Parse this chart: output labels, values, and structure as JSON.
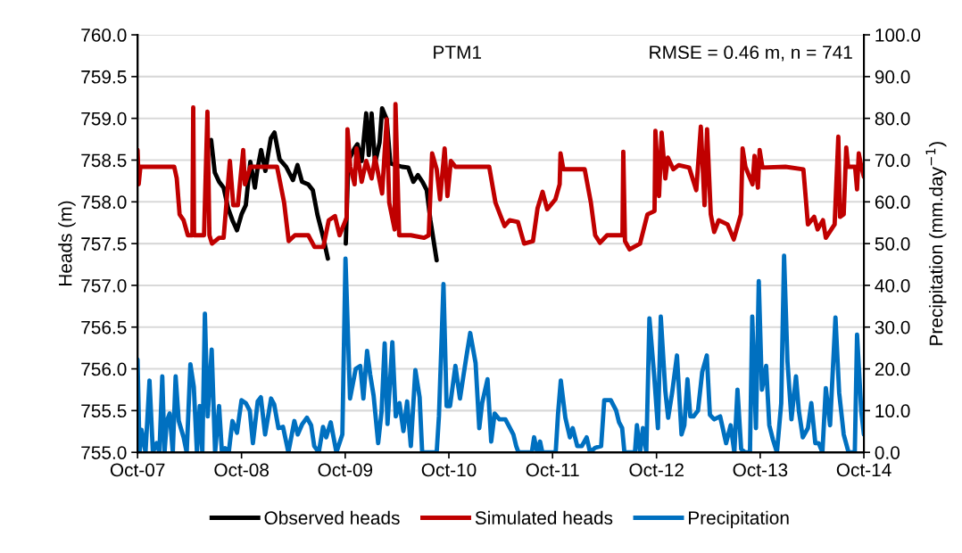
{
  "chart_data": {
    "type": "line",
    "ylabel": "Heads (m)",
    "y2label": "Precipitation (mm.day$^{−1}$)",
    "annotations": [
      "PTM1",
      "RMSE = 0.46 m, n = 741"
    ],
    "xlim": [
      "2007-10-01",
      "2014-10-01"
    ],
    "xticks": [
      {
        "value": "2007-10-01",
        "label": "Oct-07"
      },
      {
        "value": "2008-10-01",
        "label": "Oct-08"
      },
      {
        "value": "2009-10-01",
        "label": "Oct-09"
      },
      {
        "value": "2010-10-01",
        "label": "Oct-10"
      },
      {
        "value": "2011-10-01",
        "label": "Oct-11"
      },
      {
        "value": "2012-10-01",
        "label": "Oct-12"
      },
      {
        "value": "2013-10-01",
        "label": "Oct-13"
      },
      {
        "value": "2014-10-01",
        "label": "Oct-14"
      }
    ],
    "ylim": [
      755,
      760
    ],
    "yticks": [
      {
        "value": 755,
        "label": "755.0"
      },
      {
        "value": 755.5,
        "label": "755.5"
      },
      {
        "value": 756,
        "label": "756.0"
      },
      {
        "value": 756.5,
        "label": "756.5"
      },
      {
        "value": 757,
        "label": "757.0"
      },
      {
        "value": 757.5,
        "label": "757.5"
      },
      {
        "value": 758,
        "label": "758.0"
      },
      {
        "value": 758.5,
        "label": "758.5"
      },
      {
        "value": 759,
        "label": "759.0"
      },
      {
        "value": 759.5,
        "label": "759.5"
      },
      {
        "value": 760,
        "label": "760.0"
      }
    ],
    "y2lim": [
      0,
      100
    ],
    "y2ticks": [
      {
        "value": 0,
        "label": "0.0"
      },
      {
        "value": 10,
        "label": "10.0"
      },
      {
        "value": 20,
        "label": "20.0"
      },
      {
        "value": 30,
        "label": "30.0"
      },
      {
        "value": 40,
        "label": "40.0"
      },
      {
        "value": 50,
        "label": "50.0"
      },
      {
        "value": 60,
        "label": "60.0"
      },
      {
        "value": 70,
        "label": "70.0"
      },
      {
        "value": 80,
        "label": "80.0"
      },
      {
        "value": 90,
        "label": "90.0"
      },
      {
        "value": 100,
        "label": "100.0"
      }
    ],
    "grid": "y",
    "legend": "bottom",
    "marker": "none",
    "line_style": "solid",
    "series": [
      {
        "name": "Observed heads",
        "color": "#000000",
        "x": [
          "2008-06-16",
          "2008-06-29",
          "2008-07-14",
          "2008-07-30",
          "2008-08-15",
          "2008-08-30",
          "2008-09-15",
          "2008-10-01",
          "2008-10-16",
          "2008-11-01",
          "2008-11-17",
          "2008-11-26",
          "2008-12-09",
          "2008-12-24",
          "2009-01-12",
          "2009-01-25",
          "2009-02-12",
          "2009-03-07",
          "2009-03-31",
          "2009-04-16",
          "2009-05-02",
          "2009-05-24",
          "2009-06-09",
          "2009-06-25",
          "2009-07-16",
          "2009-08-01",
          "2009-09-02",
          "2009-10-03",
          "2009-10-12",
          "2009-11-03",
          "2009-11-13",
          "2009-11-28",
          "2009-12-14",
          "2009-12-23",
          "2010-01-02",
          "2010-01-14",
          "2010-01-30",
          "2010-02-08",
          "2010-02-24",
          "2010-03-09",
          "2010-04-19",
          "2010-05-11",
          "2010-05-29",
          "2010-06-14",
          "2010-06-30",
          "2010-07-15",
          "2010-07-28",
          "2010-08-19"
        ],
        "values": [
          758.74,
          758.35,
          758.24,
          758.17,
          757.92,
          757.78,
          757.66,
          757.85,
          757.96,
          758.48,
          758.17,
          758.39,
          758.62,
          758.37,
          758.76,
          758.83,
          758.51,
          758.42,
          758.26,
          758.44,
          758.24,
          758.21,
          758.14,
          757.85,
          757.57,
          757.32,
          null,
          757.5,
          758.49,
          758.64,
          758.69,
          758.49,
          759.06,
          758.56,
          759.06,
          758.46,
          758.71,
          759.12,
          758.99,
          758.46,
          758.42,
          758.41,
          758.24,
          758.32,
          758.24,
          758.14,
          757.78,
          757.3
        ]
      },
      {
        "name": "Simulated heads",
        "color": "#c00000",
        "x": [
          "2007-10-01",
          "2007-10-05",
          "2007-10-11",
          "2008-02-07",
          "2008-02-16",
          "2008-02-26",
          "2008-03-11",
          "2008-03-26",
          "2008-04-11",
          "2008-04-14",
          "2008-04-17",
          "2008-05-22",
          "2008-06-03",
          "2008-06-10",
          "2008-06-19",
          "2008-07-14",
          "2008-07-30",
          "2008-08-21",
          "2008-09-02",
          "2008-09-18",
          "2008-10-07",
          "2008-10-13",
          "2008-11-01",
          "2009-02-03",
          "2009-02-28",
          "2009-03-16",
          "2009-04-07",
          "2009-05-24",
          "2009-06-15",
          "2009-07-16",
          "2009-08-04",
          "2009-08-26",
          "2009-09-11",
          "2009-10-06",
          "2009-10-09",
          "2009-10-19",
          "2009-11-03",
          "2009-11-10",
          "2009-11-28",
          "2009-12-14",
          "2010-01-02",
          "2010-01-14",
          "2010-02-08",
          "2010-02-24",
          "2010-03-05",
          "2010-03-24",
          "2010-03-27",
          "2010-04-09",
          "2010-05-20",
          "2010-07-06",
          "2010-07-22",
          "2010-08-03",
          "2010-08-19",
          "2010-08-31",
          "2010-09-16",
          "2010-09-26",
          "2010-10-08",
          "2010-10-24",
          "2011-02-20",
          "2011-03-14",
          "2011-03-30",
          "2011-04-15",
          "2011-05-03",
          "2011-06-01",
          "2011-06-23",
          "2011-07-24",
          "2011-08-09",
          "2011-08-27",
          "2011-09-12",
          "2011-10-11",
          "2011-10-26",
          "2011-10-29",
          "2011-11-08",
          "2012-01-22",
          "2012-02-13",
          "2012-02-28",
          "2012-03-16",
          "2012-04-10",
          "2012-05-18",
          "2012-06-03",
          "2012-06-06",
          "2012-06-12",
          "2012-06-28",
          "2012-08-04",
          "2012-08-30",
          "2012-09-24",
          "2012-09-27",
          "2012-10-10",
          "2012-10-19",
          "2012-11-01",
          "2012-11-10",
          "2012-11-29",
          "2012-12-18",
          "2013-01-24",
          "2013-02-18",
          "2013-03-06",
          "2013-03-19",
          "2013-03-28",
          "2013-04-10",
          "2013-04-22",
          "2013-05-08",
          "2013-06-08",
          "2013-06-30",
          "2013-07-25",
          "2013-07-31",
          "2013-08-10",
          "2013-09-04",
          "2013-09-11",
          "2013-09-23",
          "2013-09-29",
          "2013-10-09",
          "2013-12-29",
          "2014-03-02",
          "2014-03-18",
          "2014-04-09",
          "2014-04-21",
          "2014-05-10",
          "2014-05-20",
          "2014-06-20",
          "2014-07-03",
          "2014-07-09",
          "2014-07-22",
          "2014-07-31",
          "2014-08-06",
          "2014-08-31",
          "2014-09-07",
          "2014-09-13",
          "2014-09-22",
          "2014-10-01"
        ],
        "values": [
          758.62,
          758.21,
          758.42,
          758.42,
          758.28,
          757.85,
          757.78,
          757.6,
          757.6,
          759.13,
          757.6,
          757.6,
          759.08,
          757.6,
          757.5,
          757.57,
          757.57,
          758.49,
          757.96,
          757.96,
          758.62,
          758.21,
          758.42,
          758.42,
          757.99,
          757.53,
          757.6,
          757.6,
          757.46,
          757.46,
          757.78,
          757.83,
          757.6,
          757.81,
          758.87,
          758.42,
          758.21,
          758.64,
          758.24,
          758.49,
          758.28,
          758.53,
          758.1,
          758.99,
          757.99,
          757.67,
          759.17,
          757.6,
          757.6,
          757.57,
          757.6,
          758.58,
          758.39,
          758.03,
          758.64,
          758.07,
          758.49,
          758.42,
          758.42,
          757.99,
          757.85,
          757.71,
          757.78,
          757.76,
          757.5,
          757.53,
          757.92,
          758.12,
          757.91,
          758.03,
          758.21,
          758.58,
          758.39,
          758.39,
          757.99,
          757.6,
          757.51,
          757.6,
          757.6,
          757.6,
          758.6,
          757.53,
          757.43,
          757.5,
          757.85,
          757.89,
          758.85,
          758.07,
          758.83,
          758.28,
          758.53,
          758.39,
          758.44,
          758.41,
          758.14,
          758.9,
          757.96,
          758.87,
          757.85,
          757.64,
          757.78,
          757.73,
          757.55,
          757.85,
          758.64,
          758.42,
          758.21,
          758.55,
          758.17,
          758.62,
          758.41,
          758.42,
          758.39,
          757.73,
          757.82,
          757.67,
          757.78,
          757.57,
          757.73,
          758.78,
          757.82,
          757.85,
          758.65,
          758.42,
          758.42,
          758.15,
          758.58,
          758.42,
          758.3
        ]
      },
      {
        "name": "Precipitation",
        "color": "#0070c0",
        "axis": "y2",
        "x": [
          "2007-10-01",
          "2007-10-08",
          "2007-10-15",
          "2007-10-29",
          "2007-11-12",
          "2007-11-24",
          "2007-12-07",
          "2007-12-17",
          "2007-12-27",
          "2008-01-04",
          "2008-01-12",
          "2008-01-22",
          "2008-02-02",
          "2008-02-12",
          "2008-02-23",
          "2008-03-11",
          "2008-03-22",
          "2008-04-04",
          "2008-04-16",
          "2008-04-27",
          "2008-05-07",
          "2008-05-16",
          "2008-05-25",
          "2008-06-04",
          "2008-06-18",
          "2008-06-30",
          "2008-07-14",
          "2008-07-24",
          "2008-08-04",
          "2008-08-17",
          "2008-08-30",
          "2008-09-15",
          "2008-10-01",
          "2008-10-16",
          "2008-10-30",
          "2008-11-10",
          "2008-11-27",
          "2008-12-08",
          "2008-12-23",
          "2009-01-13",
          "2009-01-24",
          "2009-02-08",
          "2009-02-24",
          "2009-03-15",
          "2009-04-05",
          "2009-04-17",
          "2009-05-03",
          "2009-05-19",
          "2009-06-03",
          "2009-06-14",
          "2009-06-30",
          "2009-07-15",
          "2009-07-26",
          "2009-08-11",
          "2009-08-31",
          "2009-09-21",
          "2009-10-02",
          "2009-10-18",
          "2009-11-07",
          "2009-11-23",
          "2009-12-04",
          "2009-12-17",
          "2009-12-28",
          "2010-01-09",
          "2010-01-25",
          "2010-02-06",
          "2010-02-17",
          "2010-02-27",
          "2010-03-16",
          "2010-03-28",
          "2010-04-10",
          "2010-04-24",
          "2010-05-07",
          "2010-05-20",
          "2010-06-05",
          "2010-06-20",
          "2010-06-29",
          "2010-08-19",
          "2010-08-27",
          "2010-09-12",
          "2010-09-23",
          "2010-10-05",
          "2010-10-24",
          "2010-11-09",
          "2010-11-30",
          "2010-12-15",
          "2011-01-03",
          "2011-01-16",
          "2011-01-26",
          "2011-02-14",
          "2011-02-27",
          "2011-03-11",
          "2011-03-28",
          "2011-04-18",
          "2011-05-16",
          "2011-05-26",
          "2011-06-03",
          "2011-07-20",
          "2011-07-28",
          "2011-08-08",
          "2011-08-18",
          "2011-08-26",
          "2011-10-12",
          "2011-10-20",
          "2011-10-30",
          "2011-11-15",
          "2011-12-01",
          "2011-12-11",
          "2011-12-27",
          "2012-01-12",
          "2012-01-29",
          "2012-02-10",
          "2012-02-28",
          "2012-03-20",
          "2012-03-31",
          "2012-04-11",
          "2012-04-23",
          "2012-05-12",
          "2012-05-22",
          "2012-06-02",
          "2012-06-10",
          "2012-07-17",
          "2012-07-24",
          "2012-08-04",
          "2012-08-14",
          "2012-08-26",
          "2012-09-06",
          "2012-09-23",
          "2012-10-06",
          "2012-10-16",
          "2012-11-01",
          "2012-11-11",
          "2012-11-25",
          "2012-12-12",
          "2012-12-28",
          "2013-01-07",
          "2013-01-18",
          "2013-01-28",
          "2013-02-08",
          "2013-02-24",
          "2013-03-11",
          "2013-03-27",
          "2013-04-07",
          "2013-04-22",
          "2013-05-13",
          "2013-06-03",
          "2013-06-19",
          "2013-07-02",
          "2013-07-13",
          "2013-07-26",
          "2013-08-08",
          "2013-08-26",
          "2013-09-03",
          "2013-09-16",
          "2013-09-26",
          "2013-10-07",
          "2013-10-22",
          "2013-11-02",
          "2013-11-15",
          "2013-11-29",
          "2013-12-14",
          "2013-12-24",
          "2014-01-05",
          "2014-01-19",
          "2014-02-04",
          "2014-02-14",
          "2014-02-28",
          "2014-03-18",
          "2014-03-30",
          "2014-04-13",
          "2014-04-25",
          "2014-05-08",
          "2014-05-20",
          "2014-06-04",
          "2014-06-23",
          "2014-07-06",
          "2014-07-22",
          "2014-08-08",
          "2014-08-30",
          "2014-09-07",
          "2014-09-22",
          "2014-10-01"
        ],
        "values": [
          22.2,
          0,
          5.4,
          0,
          17.2,
          0,
          2.2,
          0,
          18.2,
          0,
          7.5,
          9.3,
          0,
          18.2,
          7.5,
          3.6,
          0,
          21.1,
          15.7,
          0,
          11.1,
          0,
          33.2,
          8.6,
          24.6,
          0,
          11.1,
          0,
          1.0,
          0,
          7.5,
          4.7,
          12.5,
          11.8,
          10.0,
          2.2,
          12.2,
          13.2,
          4.3,
          12.9,
          11.5,
          5.8,
          6.1,
          0,
          7.5,
          4.3,
          6.8,
          8.3,
          6.5,
          1.5,
          0,
          6.1,
          3.6,
          7.2,
          0,
          4.3,
          46.4,
          12.9,
          20.0,
          20.7,
          12.9,
          24.3,
          18.6,
          13.6,
          2.2,
          9.7,
          26.1,
          6.8,
          26.4,
          8.6,
          11.8,
          5.1,
          12.2,
          1.5,
          19.7,
          13.2,
          0,
          0,
          8.6,
          40.3,
          11.1,
          11.1,
          20.7,
          12.9,
          22.2,
          28.6,
          21.4,
          5.8,
          11.8,
          17.5,
          2.6,
          9.3,
          7.9,
          7.9,
          4.3,
          1.5,
          0,
          0,
          3.6,
          0,
          2.6,
          0,
          0,
          9.0,
          17.2,
          8.3,
          3.6,
          5.8,
          1.5,
          1.5,
          3.6,
          0,
          1.1,
          1.5,
          12.5,
          12.5,
          12.5,
          10.0,
          7.2,
          5.8,
          0,
          0,
          6.5,
          0,
          5.8,
          0,
          32.1,
          18.2,
          5.8,
          32.5,
          14.7,
          8.3,
          14.3,
          23.2,
          4.3,
          6.5,
          17.5,
          8.6,
          8.6,
          10.0,
          19.3,
          23.2,
          9.0,
          7.9,
          8.6,
          2.2,
          6.5,
          0,
          15.0,
          0.8,
          0,
          0,
          32.5,
          5.8,
          41.0,
          15.0,
          20.7,
          6.5,
          3.0,
          0,
          11.8,
          47.1,
          21.8,
          7.9,
          18.2,
          10.0,
          3.6,
          5.8,
          11.8,
          2.2,
          2.2,
          0,
          15.4,
          6.5,
          32.3,
          14.3,
          4.3,
          0,
          0,
          28.2,
          9.7,
          4.3
        ]
      }
    ]
  }
}
